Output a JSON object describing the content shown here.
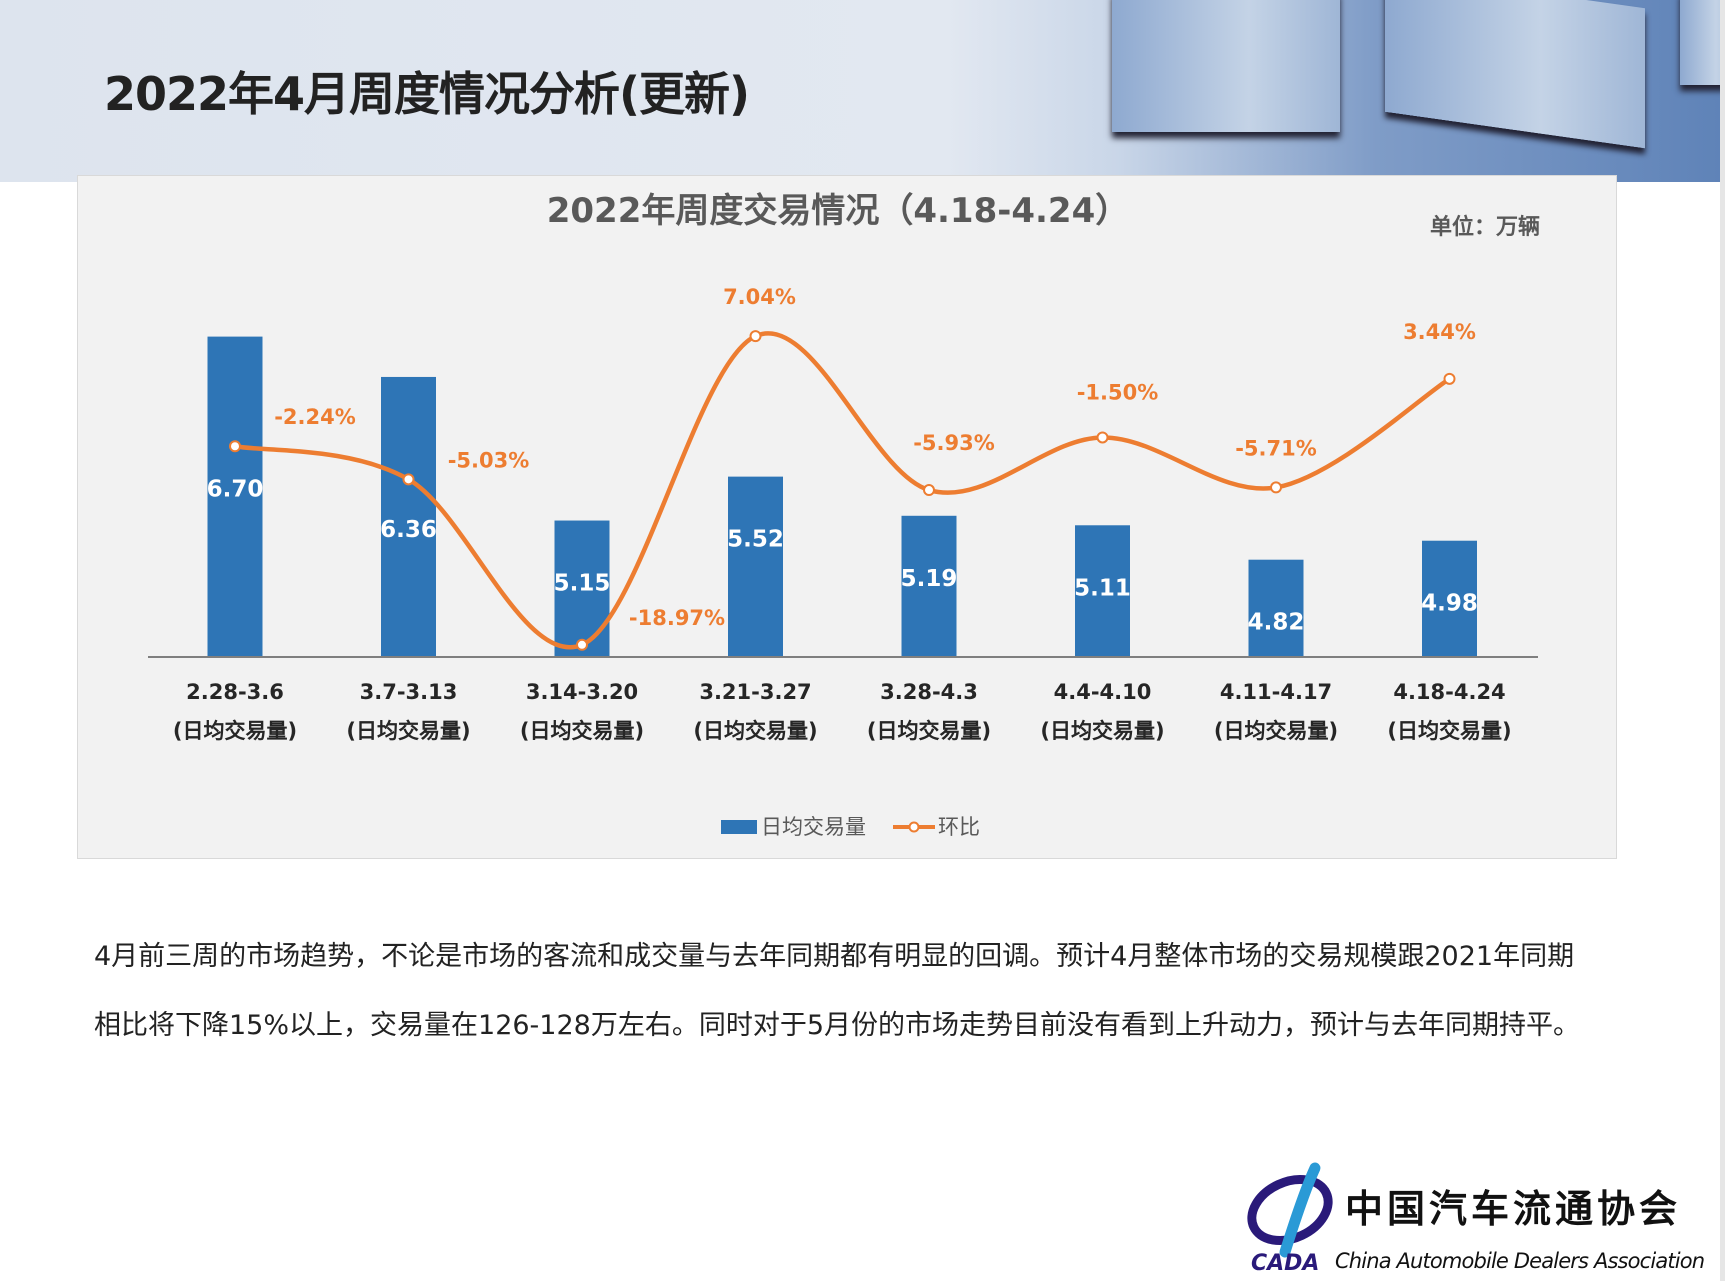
{
  "page": {
    "title": "2022年4月周度情况分析(更新)",
    "paragraph": "4月前三周的市场趋势，不论是市场的客流和成交量与去年同期都有明显的回调。预计4月整体市场的交易规模跟2021年同期相比将下降15%以上，交易量在126-128万左右。同时对于5月份的市场走势目前没有看到上升动力，预计与去年同期持平。"
  },
  "logo": {
    "abbr": "CADA",
    "cn": "中国汽车流通协会",
    "en": "China Automobile Dealers Association"
  },
  "chart_data": {
    "type": "bar+line",
    "title": "2022年周度交易情况（4.18-4.24）",
    "unit_label": "单位：万辆",
    "categories": [
      "2.28-3.6",
      "3.7-3.13",
      "3.14-3.20",
      "3.21-3.27",
      "3.28-4.3",
      "4.4-4.10",
      "4.11-4.17",
      "4.18-4.24"
    ],
    "category_sub": "(日均交易量)",
    "series": [
      {
        "name": "日均交易量",
        "type": "bar",
        "color": "#2E75B6",
        "values": [
          6.7,
          6.36,
          5.15,
          5.52,
          5.19,
          5.11,
          4.82,
          4.98
        ],
        "labels": [
          "6.70",
          "6.36",
          "5.15",
          "5.52",
          "5.19",
          "5.11",
          "4.82",
          "4.98"
        ]
      },
      {
        "name": "环比",
        "type": "line",
        "color": "#ED7D31",
        "values": [
          -2.24,
          -5.03,
          -18.97,
          7.04,
          -5.93,
          -1.5,
          -5.71,
          3.44
        ],
        "labels": [
          "-2.24%",
          "-5.03%",
          "-18.97%",
          "7.04%",
          "-5.93%",
          "-1.50%",
          "-5.71%",
          "3.44%"
        ]
      }
    ],
    "ylim": [
      4,
      7
    ],
    "y2lim": [
      -20,
      10
    ],
    "legend": "bottom",
    "grid": false
  }
}
